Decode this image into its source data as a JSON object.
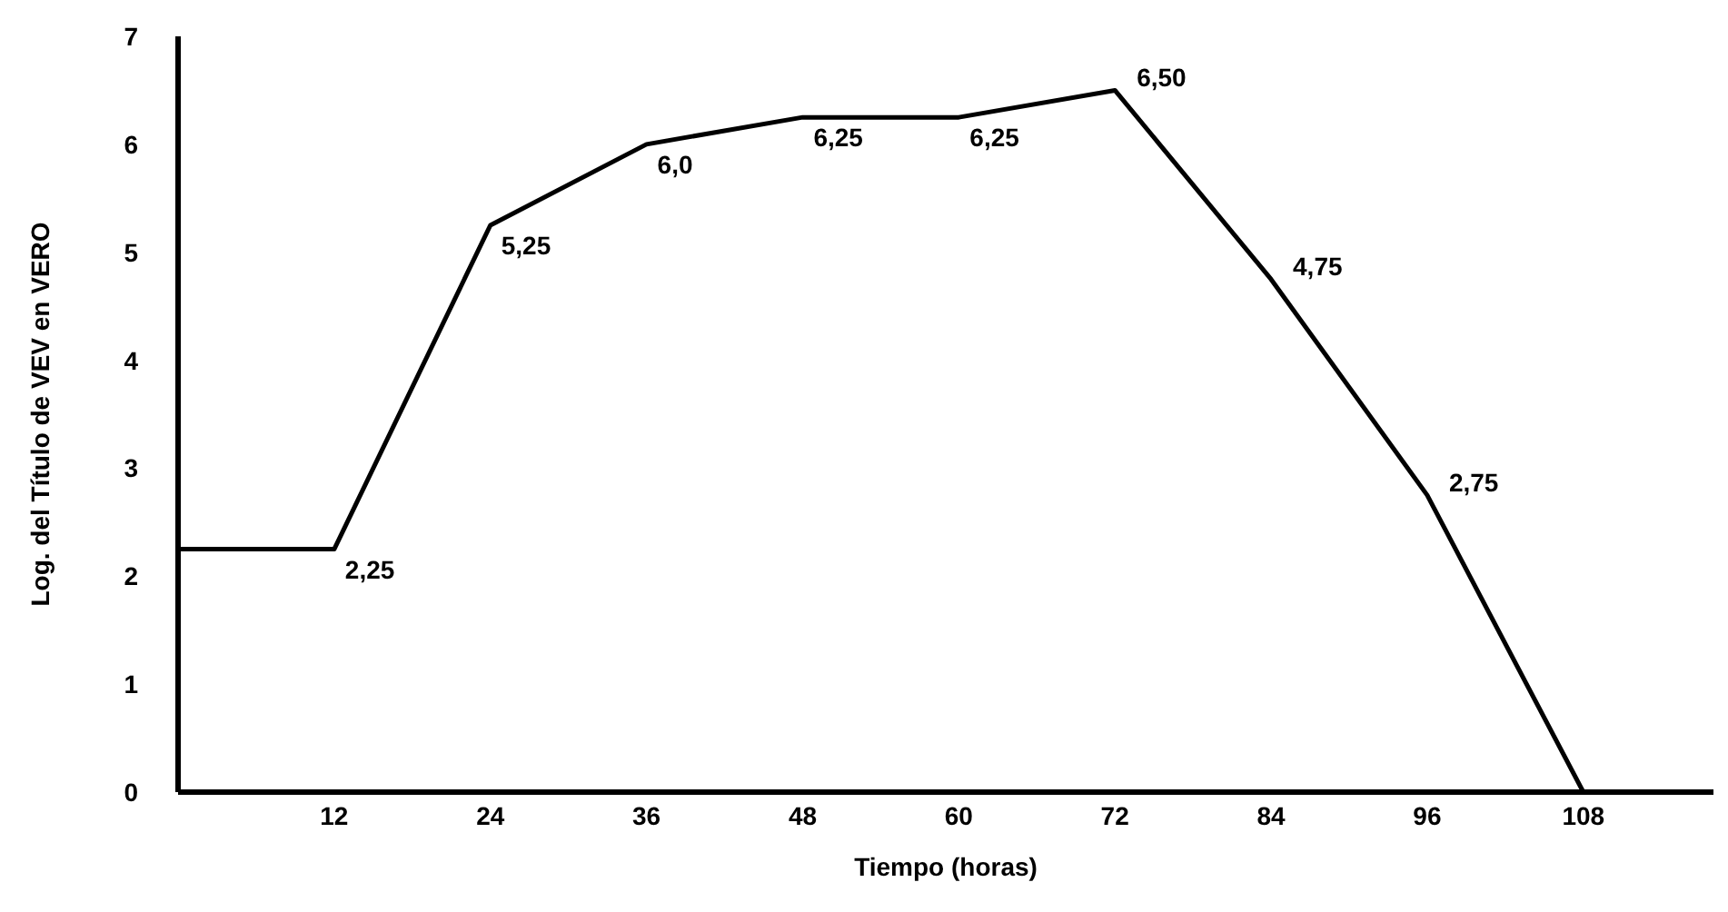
{
  "chart_data": {
    "type": "line",
    "xlabel": "Tiempo (horas)",
    "ylabel": "Log. del Título de VEV en VERO",
    "x": [
      0,
      12,
      24,
      36,
      48,
      60,
      72,
      84,
      96,
      108
    ],
    "series": [
      {
        "color": "#000000",
        "values": [
          2.25,
          2.25,
          5.25,
          6.0,
          6.25,
          6.25,
          6.5,
          4.75,
          2.75,
          0
        ],
        "value_labels": [
          null,
          "2,25",
          "5,25",
          "6,0",
          "6,25",
          "6,25",
          "6,50",
          "4,75",
          "2,75",
          null
        ]
      }
    ],
    "xlim": [
      0,
      118
    ],
    "xticks": [
      12,
      24,
      36,
      48,
      60,
      72,
      84,
      96,
      108
    ],
    "ylim": [
      0,
      7
    ],
    "yticks": [
      0,
      1,
      2,
      3,
      4,
      5,
      6,
      7
    ]
  }
}
